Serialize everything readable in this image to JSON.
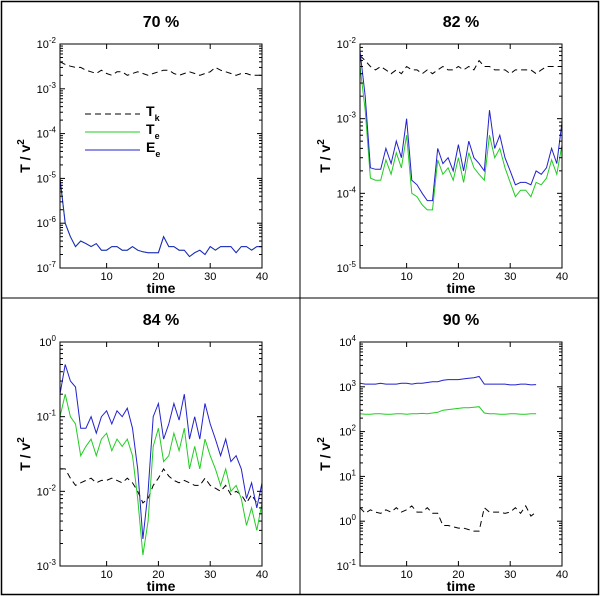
{
  "chart_data": [
    {
      "type": "line",
      "title": "70 %",
      "xlabel": "time",
      "ylabel": {
        "text": "T / v",
        "sup": "2"
      },
      "log_y": true,
      "legend": true,
      "xlim": [
        1,
        40
      ],
      "xticks": [
        10,
        20,
        30,
        40
      ],
      "ylim": [
        1e-07,
        0.01
      ],
      "yticks": [
        {
          "value": 1e-07,
          "label": "10",
          "exp": "-7"
        },
        {
          "value": 1e-06,
          "label": "10",
          "exp": "-6"
        },
        {
          "value": 1e-05,
          "label": "10",
          "exp": "-5"
        },
        {
          "value": 0.0001,
          "label": "10",
          "exp": "-4"
        },
        {
          "value": 0.001,
          "label": "10",
          "exp": "-3"
        },
        {
          "value": 0.01,
          "label": "10",
          "exp": "-2"
        }
      ],
      "x": [
        1,
        2,
        3,
        4,
        5,
        6,
        7,
        8,
        9,
        10,
        11,
        12,
        13,
        14,
        15,
        16,
        17,
        18,
        19,
        20,
        21,
        22,
        23,
        24,
        25,
        26,
        27,
        28,
        29,
        30,
        31,
        32,
        33,
        34,
        35,
        36,
        37,
        38,
        39,
        40
      ],
      "series": [
        {
          "name": "T",
          "sub": "k",
          "color": "#000000",
          "dash": true,
          "values": [
            0.004,
            0.0035,
            0.0032,
            0.003,
            0.003,
            0.0026,
            0.0024,
            0.0022,
            0.0026,
            0.0022,
            0.002,
            0.0024,
            0.0024,
            0.002,
            0.0022,
            0.0024,
            0.0022,
            0.002,
            0.0022,
            0.0024,
            0.0026,
            0.0026,
            0.0022,
            0.002,
            0.0022,
            0.0024,
            0.0022,
            0.002,
            0.0022,
            0.0024,
            0.003,
            0.0026,
            0.0024,
            0.0022,
            0.002,
            0.0022,
            0.0022,
            0.002,
            0.002,
            0.002
          ]
        },
        {
          "name": "T",
          "sub": "e",
          "color": "#22cc22",
          "dash": false,
          "values": [
            1e-05,
            1e-06,
            5e-07,
            3e-07,
            4e-07,
            3.5e-07,
            3e-07,
            3.5e-07,
            2.5e-07,
            2.5e-07,
            3e-07,
            3e-07,
            2.5e-07,
            2.5e-07,
            3e-07,
            2.5e-07,
            2.3e-07,
            2.2e-07,
            2.2e-07,
            2.2e-07,
            5e-07,
            3e-07,
            3e-07,
            2.5e-07,
            2.5e-07,
            1.8e-07,
            2.2e-07,
            2.5e-07,
            2e-07,
            3e-07,
            2.5e-07,
            3e-07,
            3e-07,
            3e-07,
            2.2e-07,
            3e-07,
            3e-07,
            2.5e-07,
            3e-07,
            3e-07
          ]
        },
        {
          "name": "E",
          "sub": "e",
          "color": "#2222cc",
          "dash": false,
          "values": [
            1e-05,
            1e-06,
            5e-07,
            3e-07,
            4e-07,
            3.5e-07,
            3e-07,
            3.5e-07,
            2.5e-07,
            2.5e-07,
            3e-07,
            3e-07,
            2.5e-07,
            2.5e-07,
            3e-07,
            2.5e-07,
            2.3e-07,
            2.2e-07,
            2.2e-07,
            2.2e-07,
            5e-07,
            3e-07,
            3e-07,
            2.5e-07,
            2.5e-07,
            1.8e-07,
            2.2e-07,
            2.5e-07,
            2e-07,
            3e-07,
            2.5e-07,
            3e-07,
            3e-07,
            3e-07,
            2.2e-07,
            3e-07,
            3e-07,
            2.5e-07,
            3e-07,
            3e-07
          ]
        }
      ]
    },
    {
      "type": "line",
      "title": "82 %",
      "xlabel": "time",
      "ylabel": {
        "text": "T / v",
        "sup": "2"
      },
      "log_y": true,
      "legend": false,
      "xlim": [
        1,
        40
      ],
      "xticks": [
        10,
        20,
        30,
        40
      ],
      "ylim": [
        1e-05,
        0.01
      ],
      "yticks": [
        {
          "value": 1e-05,
          "label": "10",
          "exp": "-5"
        },
        {
          "value": 0.0001,
          "label": "10",
          "exp": "-4"
        },
        {
          "value": 0.001,
          "label": "10",
          "exp": "-3"
        },
        {
          "value": 0.01,
          "label": "10",
          "exp": "-2"
        }
      ],
      "x": [
        1,
        2,
        3,
        4,
        5,
        6,
        7,
        8,
        9,
        10,
        11,
        12,
        13,
        14,
        15,
        16,
        17,
        18,
        19,
        20,
        21,
        22,
        23,
        24,
        25,
        26,
        27,
        28,
        29,
        30,
        31,
        32,
        33,
        34,
        35,
        36,
        37,
        38,
        39,
        40
      ],
      "series": [
        {
          "color": "#000000",
          "dash": true,
          "values": [
            0.007,
            0.006,
            0.005,
            0.0045,
            0.005,
            0.0045,
            0.004,
            0.0045,
            0.004,
            0.005,
            0.0045,
            0.0045,
            0.004,
            0.0045,
            0.004,
            0.0045,
            0.005,
            0.0045,
            0.0045,
            0.005,
            0.0045,
            0.005,
            0.0045,
            0.006,
            0.005,
            0.005,
            0.0045,
            0.0045,
            0.0045,
            0.004,
            0.0045,
            0.0045,
            0.0045,
            0.0045,
            0.004,
            0.0045,
            0.005,
            0.005,
            0.005,
            0.005
          ]
        },
        {
          "color": "#22cc22",
          "dash": false,
          "values": [
            0.005,
            0.0013,
            0.00016,
            0.00015,
            0.00015,
            0.00028,
            0.00018,
            0.00035,
            0.00022,
            0.0006,
            0.0001,
            9e-05,
            7e-05,
            6e-05,
            6e-05,
            0.00028,
            0.00018,
            0.00022,
            0.00015,
            0.0003,
            0.00014,
            0.00035,
            0.00022,
            0.00018,
            0.00015,
            0.0006,
            0.0003,
            0.0004,
            0.00022,
            0.00014,
            9e-05,
            0.00011,
            0.00011,
            9e-05,
            0.00014,
            0.00013,
            0.00016,
            0.00028,
            0.00018,
            0.00045
          ]
        },
        {
          "color": "#2222cc",
          "dash": false,
          "values": [
            0.008,
            0.002,
            0.00022,
            0.00021,
            0.00021,
            0.0004,
            0.00025,
            0.0005,
            0.0003,
            0.001,
            0.00015,
            0.00013,
            0.0001,
            8e-05,
            8e-05,
            0.0004,
            0.00025,
            0.0003,
            0.0002,
            0.00045,
            0.0002,
            0.0005,
            0.0003,
            0.00025,
            0.0002,
            0.0013,
            0.0004,
            0.0006,
            0.0003,
            0.0002,
            0.00013,
            0.00014,
            0.00014,
            0.00013,
            0.0002,
            0.00018,
            0.00022,
            0.0004,
            0.00025,
            0.0009
          ]
        }
      ]
    },
    {
      "type": "line",
      "title": "84 %",
      "xlabel": "time",
      "ylabel": {
        "text": "T / v",
        "sup": "2"
      },
      "log_y": true,
      "legend": false,
      "xlim": [
        1,
        40
      ],
      "xticks": [
        10,
        20,
        30,
        40
      ],
      "ylim": [
        0.001,
        1
      ],
      "yticks": [
        {
          "value": 0.001,
          "label": "10",
          "exp": "-3"
        },
        {
          "value": 0.01,
          "label": "10",
          "exp": "-2"
        },
        {
          "value": 0.1,
          "label": "10",
          "exp": "-1"
        },
        {
          "value": 1,
          "label": "10",
          "exp": "0"
        }
      ],
      "x": [
        1,
        2,
        3,
        4,
        5,
        6,
        7,
        8,
        9,
        10,
        11,
        12,
        13,
        14,
        15,
        16,
        17,
        18,
        19,
        20,
        21,
        22,
        23,
        24,
        25,
        26,
        27,
        28,
        29,
        30,
        31,
        32,
        33,
        34,
        35,
        36,
        37,
        38,
        39,
        40
      ],
      "series": [
        {
          "color": "#000000",
          "dash": true,
          "values": [
            0.02,
            0.02,
            0.015,
            0.012,
            0.013,
            0.014,
            0.015,
            0.013,
            0.014,
            0.014,
            0.015,
            0.014,
            0.013,
            0.015,
            0.013,
            0.01,
            0.007,
            0.008,
            0.012,
            0.015,
            0.02,
            0.016,
            0.014,
            0.013,
            0.014,
            0.013,
            0.012,
            0.012,
            0.015,
            0.012,
            0.011,
            0.01,
            0.012,
            0.009,
            0.01,
            0.009,
            0.007,
            0.009,
            0.007,
            0.007
          ]
        },
        {
          "color": "#22cc22",
          "dash": false,
          "values": [
            0.1,
            0.2,
            0.1,
            0.08,
            0.03,
            0.04,
            0.05,
            0.03,
            0.05,
            0.06,
            0.035,
            0.05,
            0.04,
            0.05,
            0.03,
            0.008,
            0.0014,
            0.004,
            0.04,
            0.07,
            0.025,
            0.03,
            0.06,
            0.035,
            0.07,
            0.02,
            0.04,
            0.02,
            0.05,
            0.03,
            0.02,
            0.012,
            0.02,
            0.01,
            0.012,
            0.008,
            0.0035,
            0.006,
            0.003,
            0.007
          ]
        },
        {
          "color": "#2222cc",
          "dash": false,
          "values": [
            0.2,
            0.5,
            0.3,
            0.25,
            0.07,
            0.07,
            0.1,
            0.06,
            0.1,
            0.12,
            0.08,
            0.12,
            0.1,
            0.13,
            0.07,
            0.02,
            0.0023,
            0.01,
            0.1,
            0.15,
            0.05,
            0.08,
            0.15,
            0.09,
            0.2,
            0.05,
            0.1,
            0.05,
            0.15,
            0.08,
            0.05,
            0.03,
            0.05,
            0.025,
            0.03,
            0.02,
            0.008,
            0.013,
            0.006,
            0.013
          ]
        }
      ]
    },
    {
      "type": "line",
      "title": "90 %",
      "xlabel": "time",
      "ylabel": {
        "text": "T / v",
        "sup": "2"
      },
      "log_y": true,
      "legend": false,
      "xlim": [
        1,
        40
      ],
      "xticks": [
        10,
        20,
        30,
        40
      ],
      "ylim": [
        0.1,
        10000
      ],
      "yticks": [
        {
          "value": 0.1,
          "label": "10",
          "exp": "-1"
        },
        {
          "value": 1,
          "label": "10",
          "exp": "0"
        },
        {
          "value": 10,
          "label": "10",
          "exp": "1"
        },
        {
          "value": 100,
          "label": "10",
          "exp": "2"
        },
        {
          "value": 1000,
          "label": "10",
          "exp": "3"
        },
        {
          "value": 10000,
          "label": "10",
          "exp": "4"
        }
      ],
      "x": [
        1,
        2,
        3,
        4,
        5,
        6,
        7,
        8,
        9,
        10,
        11,
        12,
        13,
        14,
        15,
        16,
        17,
        18,
        19,
        20,
        21,
        22,
        23,
        24,
        25,
        26,
        27,
        28,
        29,
        30,
        31,
        32,
        33,
        34,
        35
      ],
      "series": [
        {
          "color": "#000000",
          "dash": true,
          "values": [
            2,
            1.5,
            1.8,
            1.6,
            1.5,
            1.8,
            1.6,
            2,
            1.6,
            1.8,
            2.2,
            1.6,
            1.6,
            2,
            1.5,
            1.5,
            0.8,
            0.8,
            0.75,
            0.7,
            0.7,
            0.65,
            0.6,
            0.6,
            2,
            1.6,
            1.6,
            1.6,
            1.5,
            1.6,
            2,
            1.5,
            2.2,
            1.3,
            1.6
          ]
        },
        {
          "color": "#22cc22",
          "dash": false,
          "values": [
            250,
            245,
            245,
            250,
            250,
            245,
            245,
            250,
            250,
            245,
            250,
            250,
            255,
            250,
            260,
            270,
            300,
            310,
            320,
            330,
            340,
            340,
            350,
            360,
            260,
            250,
            250,
            245,
            245,
            250,
            250,
            245,
            245,
            250,
            250
          ]
        },
        {
          "color": "#2222cc",
          "dash": false,
          "values": [
            1200,
            1150,
            1150,
            1150,
            1200,
            1150,
            1150,
            1150,
            1200,
            1200,
            1150,
            1200,
            1200,
            1250,
            1300,
            1300,
            1400,
            1450,
            1450,
            1450,
            1500,
            1550,
            1600,
            1700,
            1150,
            1150,
            1150,
            1150,
            1150,
            1100,
            1100,
            1150,
            1150,
            1100,
            1120
          ]
        }
      ]
    }
  ]
}
